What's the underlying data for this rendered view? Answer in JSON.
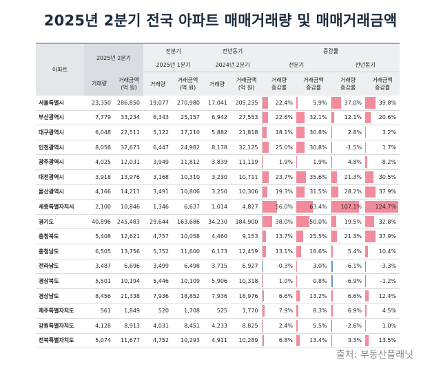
{
  "title": "2025년 2분기 전국 아파트 매매거래량 및 매매거래금액",
  "source": "출처: 부동산플래닛",
  "headers": {
    "region": "아파트",
    "period_current": "2025년 2분기",
    "prev_quarter": "전분기",
    "prev_year": "전년동기",
    "change_rate": "증감률",
    "prev_quarter_sub": "2025년 1분기",
    "prev_year_sub": "2024년 2분기",
    "rate_prev_quarter": "전분기",
    "rate_prev_year": "전년동기",
    "volume": "거래량",
    "amount": "거래금액\n(억 원)",
    "volume_rate": "거래량\n증감률",
    "amount_rate": "거래금액\n증감률"
  },
  "colors": {
    "positive_bar": "#f28b9b",
    "negative_bar": "#6e9fd6",
    "header_grey": "#d9dce0"
  },
  "chart_data": {
    "type": "table",
    "title": "2025년 2분기 전국 아파트 매매거래량 및 매매거래금액",
    "columns": [
      "아파트",
      "2025년 2분기 거래량",
      "2025년 2분기 거래금액(억 원)",
      "2025년 1분기 거래량",
      "2025년 1분기 거래금액(억 원)",
      "2024년 2분기 거래량",
      "2024년 2분기 거래금액(억 원)",
      "전분기 거래량 증감률",
      "전분기 거래금액 증감률",
      "전년동기 거래량 증감률",
      "전년동기 거래금액 증감률"
    ],
    "rows": [
      {
        "region": "서울특별시",
        "v25": "23,350",
        "a25": "286,850",
        "vq1": "19,077",
        "aq1": "270,980",
        "v24": "17,041",
        "a24": "205,235",
        "rq_v": "22.4%",
        "rq_a": "5.9%",
        "ry_v": "37.0%",
        "ry_a": "39.8%",
        "rq_v_n": 22.4,
        "rq_a_n": 5.9,
        "ry_v_n": 37.0,
        "ry_a_n": 39.8
      },
      {
        "region": "부산광역시",
        "v25": "7,779",
        "a25": "33,234",
        "vq1": "6,343",
        "aq1": "25,157",
        "v24": "6,942",
        "a24": "27,553",
        "rq_v": "22.6%",
        "rq_a": "32.1%",
        "ry_v": "12.1%",
        "ry_a": "20.6%",
        "rq_v_n": 22.6,
        "rq_a_n": 32.1,
        "ry_v_n": 12.1,
        "ry_a_n": 20.6
      },
      {
        "region": "대구광역시",
        "v25": "6,048",
        "a25": "22,511",
        "vq1": "5,122",
        "aq1": "17,210",
        "v24": "5,882",
        "a24": "21,818",
        "rq_v": "18.1%",
        "rq_a": "30.8%",
        "ry_v": "2.8%",
        "ry_a": "3.2%",
        "rq_v_n": 18.1,
        "rq_a_n": 30.8,
        "ry_v_n": 2.8,
        "ry_a_n": 3.2
      },
      {
        "region": "인천광역시",
        "v25": "8,058",
        "a25": "32,673",
        "vq1": "6,447",
        "aq1": "24,982",
        "v24": "8,178",
        "a24": "32,125",
        "rq_v": "25.0%",
        "rq_a": "30.8%",
        "ry_v": "-1.5%",
        "ry_a": "1.7%",
        "rq_v_n": 25.0,
        "rq_a_n": 30.8,
        "ry_v_n": -1.5,
        "ry_a_n": 1.7
      },
      {
        "region": "광주광역시",
        "v25": "4,025",
        "a25": "12,031",
        "vq1": "3,949",
        "aq1": "11,812",
        "v24": "3,839",
        "a24": "11,119",
        "rq_v": "1.9%",
        "rq_a": "1.9%",
        "ry_v": "4.8%",
        "ry_a": "8.2%",
        "rq_v_n": 1.9,
        "rq_a_n": 1.9,
        "ry_v_n": 4.8,
        "ry_a_n": 8.2
      },
      {
        "region": "대전광역시",
        "v25": "3,918",
        "a25": "13,976",
        "vq1": "3,168",
        "aq1": "10,310",
        "v24": "3,230",
        "a24": "10,711",
        "rq_v": "23.7%",
        "rq_a": "35.6%",
        "ry_v": "21.3%",
        "ry_a": "30.5%",
        "rq_v_n": 23.7,
        "rq_a_n": 35.6,
        "ry_v_n": 21.3,
        "ry_a_n": 30.5
      },
      {
        "region": "울산광역시",
        "v25": "4,166",
        "a25": "14,211",
        "vq1": "3,491",
        "aq1": "10,806",
        "v24": "3,250",
        "a24": "10,306",
        "rq_v": "19.3%",
        "rq_a": "31.5%",
        "ry_v": "28.2%",
        "ry_a": "37.9%",
        "rq_v_n": 19.3,
        "rq_a_n": 31.5,
        "ry_v_n": 28.2,
        "ry_a_n": 37.9
      },
      {
        "region": "세종특별자치시",
        "v25": "2,100",
        "a25": "10,846",
        "vq1": "1,346",
        "aq1": "6,637",
        "v24": "1,014",
        "a24": "4,827",
        "rq_v": "56.0%",
        "rq_a": "63.4%",
        "ry_v": "107.1%",
        "ry_a": "124.7%",
        "rq_v_n": 56.0,
        "rq_a_n": 63.4,
        "ry_v_n": 107.1,
        "ry_a_n": 124.7
      },
      {
        "region": "경기도",
        "v25": "40,896",
        "a25": "245,483",
        "vq1": "29,644",
        "aq1": "163,686",
        "v24": "34,230",
        "a24": "184,900",
        "rq_v": "38.0%",
        "rq_a": "50.0%",
        "ry_v": "19.5%",
        "ry_a": "32.8%",
        "rq_v_n": 38.0,
        "rq_a_n": 50.0,
        "ry_v_n": 19.5,
        "ry_a_n": 32.8
      },
      {
        "region": "충청북도",
        "v25": "5,408",
        "a25": "12,621",
        "vq1": "4,757",
        "aq1": "10,058",
        "v24": "4,460",
        "a24": "9,153",
        "rq_v": "13.7%",
        "rq_a": "25.5%",
        "ry_v": "21.3%",
        "ry_a": "37.9%",
        "rq_v_n": 13.7,
        "rq_a_n": 25.5,
        "ry_v_n": 21.3,
        "ry_a_n": 37.9
      },
      {
        "region": "충청남도",
        "v25": "6,505",
        "a25": "13,756",
        "vq1": "5,752",
        "aq1": "11,600",
        "v24": "6,173",
        "a24": "12,459",
        "rq_v": "13.1%",
        "rq_a": "18.6%",
        "ry_v": "5.4%",
        "ry_a": "10.4%",
        "rq_v_n": 13.1,
        "rq_a_n": 18.6,
        "ry_v_n": 5.4,
        "ry_a_n": 10.4
      },
      {
        "region": "전라남도",
        "v25": "3,487",
        "a25": "6,696",
        "vq1": "3,499",
        "aq1": "6,498",
        "v24": "3,715",
        "a24": "6,927",
        "rq_v": "-0.3%",
        "rq_a": "3.0%",
        "ry_v": "-6.1%",
        "ry_a": "-3.3%",
        "rq_v_n": -0.3,
        "rq_a_n": 3.0,
        "ry_v_n": -6.1,
        "ry_a_n": -3.3
      },
      {
        "region": "경상북도",
        "v25": "5,501",
        "a25": "10,194",
        "vq1": "5,446",
        "aq1": "10,109",
        "v24": "5,906",
        "a24": "10,318",
        "rq_v": "1.0%",
        "rq_a": "0.8%",
        "ry_v": "-6.9%",
        "ry_a": "-1.2%",
        "rq_v_n": 1.0,
        "rq_a_n": 0.8,
        "ry_v_n": -6.9,
        "ry_a_n": -1.2
      },
      {
        "region": "경상남도",
        "v25": "8,456",
        "a25": "21,338",
        "vq1": "7,936",
        "aq1": "18,852",
        "v24": "7,936",
        "a24": "18,976",
        "rq_v": "6.6%",
        "rq_a": "13.2%",
        "ry_v": "6.6%",
        "ry_a": "12.4%",
        "rq_v_n": 6.6,
        "rq_a_n": 13.2,
        "ry_v_n": 6.6,
        "ry_a_n": 12.4
      },
      {
        "region": "제주특별자치도",
        "v25": "561",
        "a25": "1,849",
        "vq1": "520",
        "aq1": "1,708",
        "v24": "525",
        "a24": "1,770",
        "rq_v": "7.9%",
        "rq_a": "8.3%",
        "ry_v": "6.9%",
        "ry_a": "4.5%",
        "rq_v_n": 7.9,
        "rq_a_n": 8.3,
        "ry_v_n": 6.9,
        "ry_a_n": 4.5
      },
      {
        "region": "강원특별자치도",
        "v25": "4,128",
        "a25": "8,913",
        "vq1": "4,031",
        "aq1": "8,451",
        "v24": "4,233",
        "a24": "8,825",
        "rq_v": "2.4%",
        "rq_a": "5.5%",
        "ry_v": "-2.6%",
        "ry_a": "1.0%",
        "rq_v_n": 2.4,
        "rq_a_n": 5.5,
        "ry_v_n": -2.6,
        "ry_a_n": 1.0
      },
      {
        "region": "전북특별자치도",
        "v25": "5,074",
        "a25": "11,677",
        "vq1": "4,752",
        "aq1": "10,293",
        "v24": "4,911",
        "a24": "10,289",
        "rq_v": "6.8%",
        "rq_a": "13.4%",
        "ry_v": "3.3%",
        "ry_a": "13.5%",
        "rq_v_n": 6.8,
        "rq_a_n": 13.4,
        "ry_v_n": 3.3,
        "ry_a_n": 13.5
      }
    ]
  }
}
